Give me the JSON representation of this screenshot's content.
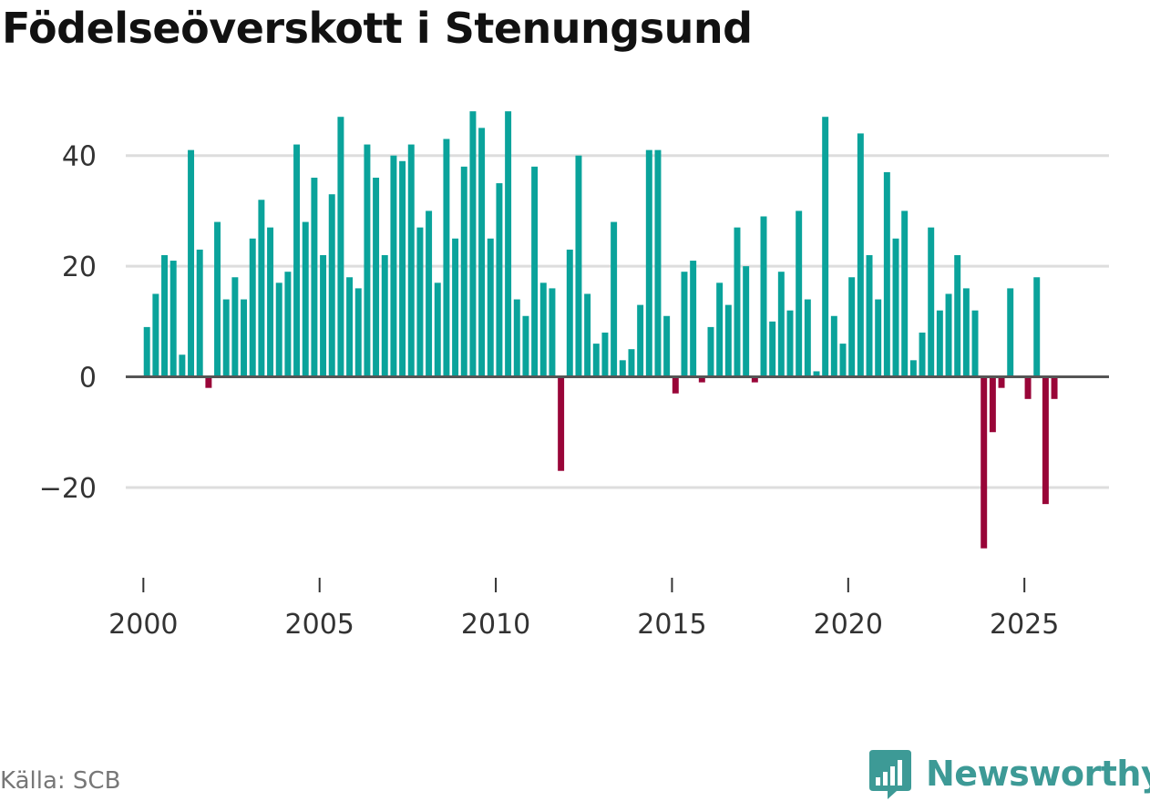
{
  "title": "Födelseöverskott i Stenungsund",
  "source": "Källa: SCB",
  "brand": "Newsworthy",
  "colors": {
    "positive": "#0aa39b",
    "negative": "#990538",
    "grid": "#dddddd",
    "baseline": "#555555",
    "brand": "#3d9a96"
  },
  "chart_data": {
    "type": "bar",
    "title": "Födelseöverskott i Stenungsund",
    "xlabel": "",
    "ylabel": "",
    "ylim": [
      -35,
      50
    ],
    "yticks": [
      -20,
      0,
      20,
      40
    ],
    "ytick_labels": [
      "−20",
      "0",
      "20",
      "40"
    ],
    "xlim": [
      1999.5,
      2027.4
    ],
    "xticks": [
      2000,
      2005,
      2010,
      2015,
      2020,
      2025
    ],
    "xtick_labels": [
      "2000",
      "2005",
      "2010",
      "2015",
      "2020",
      "2025"
    ],
    "bar_width_years": 0.2,
    "grid": true,
    "legend": "none",
    "x": [
      2000.0,
      2000.25,
      2000.5,
      2000.75,
      2001.0,
      2001.25,
      2001.5,
      2001.75,
      2002.0,
      2002.25,
      2002.5,
      2002.75,
      2003.0,
      2003.25,
      2003.5,
      2003.75,
      2004.0,
      2004.25,
      2004.5,
      2004.75,
      2005.0,
      2005.25,
      2005.5,
      2005.75,
      2006.0,
      2006.25,
      2006.5,
      2006.75,
      2007.0,
      2007.25,
      2007.5,
      2007.75,
      2008.0,
      2008.25,
      2008.5,
      2008.75,
      2009.0,
      2009.25,
      2009.5,
      2009.75,
      2010.0,
      2010.25,
      2010.5,
      2010.75,
      2011.0,
      2011.25,
      2011.5,
      2011.75,
      2012.0,
      2012.25,
      2012.5,
      2012.75,
      2013.0,
      2013.25,
      2013.5,
      2013.75,
      2014.0,
      2014.25,
      2014.5,
      2014.75,
      2015.0,
      2015.25,
      2015.5,
      2015.75,
      2016.0,
      2016.25,
      2016.5,
      2016.75,
      2017.0,
      2017.25,
      2017.5,
      2017.75,
      2018.0,
      2018.25,
      2018.5,
      2018.75,
      2019.0,
      2019.25,
      2019.5,
      2019.75,
      2020.0,
      2020.25,
      2020.5,
      2020.75,
      2021.0,
      2021.25,
      2021.5,
      2021.75,
      2022.0,
      2022.25,
      2022.5,
      2022.75,
      2023.0,
      2023.25,
      2023.5,
      2023.75,
      2024.0,
      2024.25,
      2024.5,
      2024.75,
      2025.0,
      2025.25,
      2025.5,
      2025.75
    ],
    "values": [
      9,
      15,
      22,
      21,
      4,
      41,
      23,
      -2,
      28,
      14,
      18,
      14,
      25,
      32,
      27,
      17,
      19,
      42,
      28,
      36,
      22,
      33,
      47,
      18,
      16,
      42,
      36,
      22,
      40,
      39,
      42,
      27,
      30,
      17,
      43,
      25,
      38,
      48,
      45,
      25,
      35,
      48,
      14,
      11,
      38,
      17,
      16,
      -17,
      23,
      40,
      15,
      6,
      8,
      28,
      3,
      5,
      13,
      41,
      41,
      11,
      -3,
      19,
      21,
      -1,
      9,
      17,
      13,
      27,
      20,
      -1,
      29,
      10,
      19,
      12,
      30,
      14,
      1,
      47,
      11,
      6,
      18,
      44,
      22,
      14,
      37,
      25,
      30,
      3,
      8,
      27,
      12,
      15,
      22,
      16,
      12,
      -31,
      -10,
      -2,
      16,
      0,
      -4,
      18,
      -23,
      -4
    ]
  }
}
